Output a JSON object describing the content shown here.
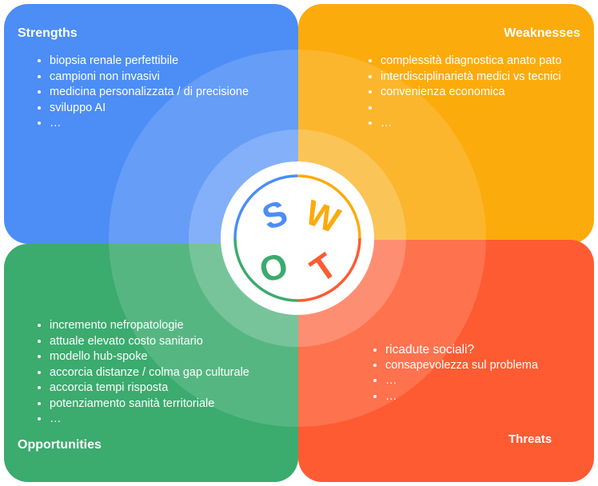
{
  "colors": {
    "strengths": "#4c8df6",
    "weaknesses": "#fbab0b",
    "opportunities": "#3bab6e",
    "threats": "#fe5b32"
  },
  "center": {
    "letters": {
      "s": "S",
      "w": "W",
      "o": "O",
      "t": "T"
    }
  },
  "strengths": {
    "title": "Strengths",
    "items": [
      "biopsia renale perfettibile",
      "campioni non invasivi",
      "medicina personalizzata / di precisione",
      "sviluppo AI",
      "…"
    ]
  },
  "weaknesses": {
    "title": "Weaknesses",
    "items": [
      "complessità diagnostica anato pato",
      "interdisciplinarietà medici vs tecnici",
      "convenienza economica",
      "",
      "…"
    ]
  },
  "opportunities": {
    "title": "Opportunities",
    "items": [
      "incremento nefropatologie",
      "attuale elevato costo sanitario",
      "modello hub-spoke",
      "accorcia distanze / colma gap culturale",
      "accorcia tempi risposta",
      "potenziamento sanità territoriale",
      "…"
    ]
  },
  "threats": {
    "title": "Threats",
    "items": [
      "ricadute sociali?",
      "consapevolezza sul problema",
      "…",
      "…"
    ]
  }
}
